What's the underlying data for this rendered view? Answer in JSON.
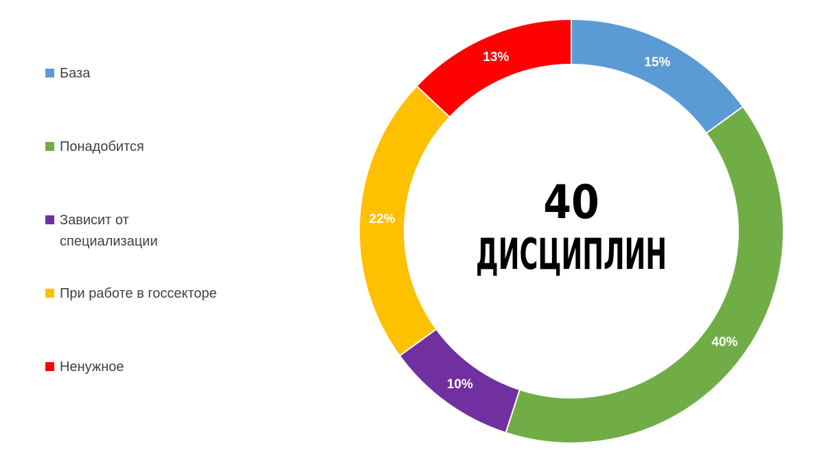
{
  "chart_data": {
    "type": "pie",
    "variant": "donut",
    "categories": [
      "База",
      "Понадобится",
      "Зависит от специализации",
      "При работе в госсекторе",
      "Ненужное"
    ],
    "values": [
      15,
      40,
      10,
      22,
      13
    ],
    "data_labels": [
      "15%",
      "40%",
      "10%",
      "22%",
      "13%"
    ],
    "colors": [
      "#5B9BD5",
      "#70AD47",
      "#7030A0",
      "#FFC000",
      "#FF0000"
    ],
    "center_text": {
      "line1": "40",
      "line2": "ДИСЦИПЛИН"
    },
    "start_angle": "top",
    "direction": "clockwise",
    "legend_position": "left"
  }
}
